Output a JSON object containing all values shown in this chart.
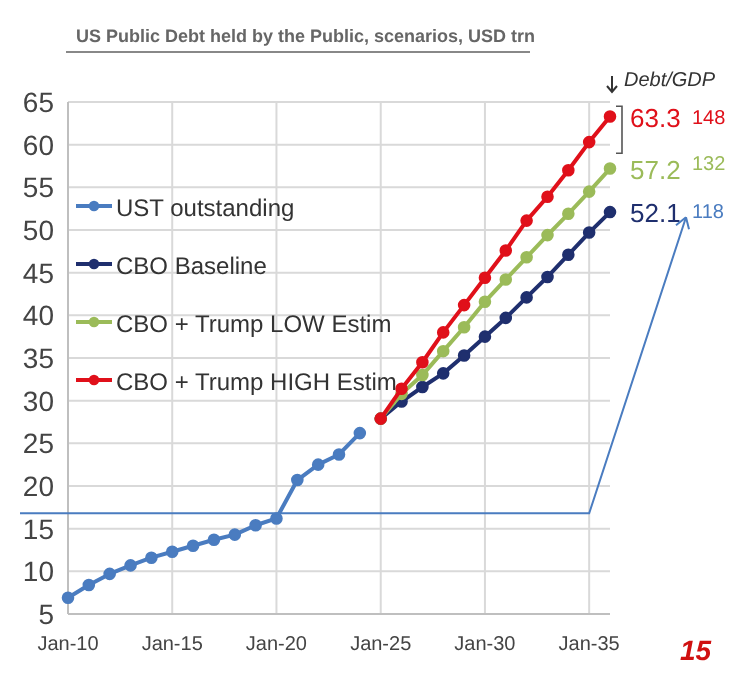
{
  "chart_data": {
    "type": "line",
    "title": "US Public Debt held by the Public, scenarios, USD trn",
    "xlim": [
      "2010-01",
      "2036-01"
    ],
    "xticks": [
      {
        "value": "2010-01",
        "label": "Jan-10"
      },
      {
        "value": "2015-01",
        "label": "Jan-15"
      },
      {
        "value": "2020-01",
        "label": "Jan-20"
      },
      {
        "value": "2025-01",
        "label": "Jan-25"
      },
      {
        "value": "2030-01",
        "label": "Jan-30"
      },
      {
        "value": "2035-01",
        "label": "Jan-35"
      }
    ],
    "ylim": [
      5,
      65
    ],
    "yticks": [
      5,
      10,
      15,
      20,
      25,
      30,
      35,
      40,
      45,
      50,
      55,
      60,
      65
    ],
    "grid": true,
    "legend": "left",
    "marker": "circle",
    "line_style": "solid",
    "series": [
      {
        "name": "UST outstanding",
        "color": "#4a7cc0",
        "x": [
          "2010-01",
          "2011-01",
          "2012-01",
          "2013-01",
          "2014-01",
          "2015-01",
          "2016-01",
          "2017-01",
          "2018-01",
          "2019-01",
          "2020-01",
          "2021-01",
          "2022-01",
          "2023-01",
          "2024-01"
        ],
        "values": [
          6.9,
          8.4,
          9.7,
          10.7,
          11.6,
          12.3,
          13.0,
          13.7,
          14.3,
          15.4,
          16.2,
          20.7,
          22.5,
          23.7,
          26.2
        ]
      },
      {
        "name": "CBO Baseline",
        "color": "#1f2f6e",
        "x": [
          "2025-01",
          "2026-01",
          "2027-01",
          "2028-01",
          "2029-01",
          "2030-01",
          "2031-01",
          "2032-01",
          "2033-01",
          "2034-01",
          "2035-01",
          "2036-01"
        ],
        "values": [
          27.9,
          29.9,
          31.6,
          33.2,
          35.3,
          37.5,
          39.7,
          42.1,
          44.5,
          47.1,
          49.7,
          52.1
        ],
        "value_labels": [
          null,
          null,
          null,
          null,
          null,
          null,
          null,
          null,
          null,
          null,
          null,
          "52.1"
        ]
      },
      {
        "name": "CBO + Trump LOW Estim",
        "color": "#9bbb59",
        "x": [
          "2025-01",
          "2026-01",
          "2027-01",
          "2028-01",
          "2029-01",
          "2030-01",
          "2031-01",
          "2032-01",
          "2033-01",
          "2034-01",
          "2035-01",
          "2036-01"
        ],
        "values": [
          27.9,
          30.8,
          33.0,
          35.8,
          38.6,
          41.6,
          44.2,
          46.8,
          49.4,
          51.9,
          54.5,
          57.2
        ],
        "value_labels": [
          null,
          null,
          null,
          null,
          null,
          null,
          null,
          null,
          null,
          null,
          null,
          "57.2"
        ]
      },
      {
        "name": "CBO + Trump HIGH Estim",
        "color": "#e0101a",
        "x": [
          "2025-01",
          "2026-01",
          "2027-01",
          "2028-01",
          "2029-01",
          "2030-01",
          "2031-01",
          "2032-01",
          "2033-01",
          "2034-01",
          "2035-01",
          "2036-01"
        ],
        "values": [
          27.9,
          31.4,
          34.5,
          38.0,
          41.2,
          44.4,
          47.6,
          51.1,
          53.9,
          57.0,
          60.3,
          63.3
        ],
        "value_labels": [
          null,
          null,
          null,
          null,
          null,
          null,
          null,
          null,
          null,
          null,
          null,
          "63.3"
        ]
      }
    ],
    "annotations": [
      "Debt/GDP",
      "148",
      "132",
      "118",
      "15"
    ]
  }
}
